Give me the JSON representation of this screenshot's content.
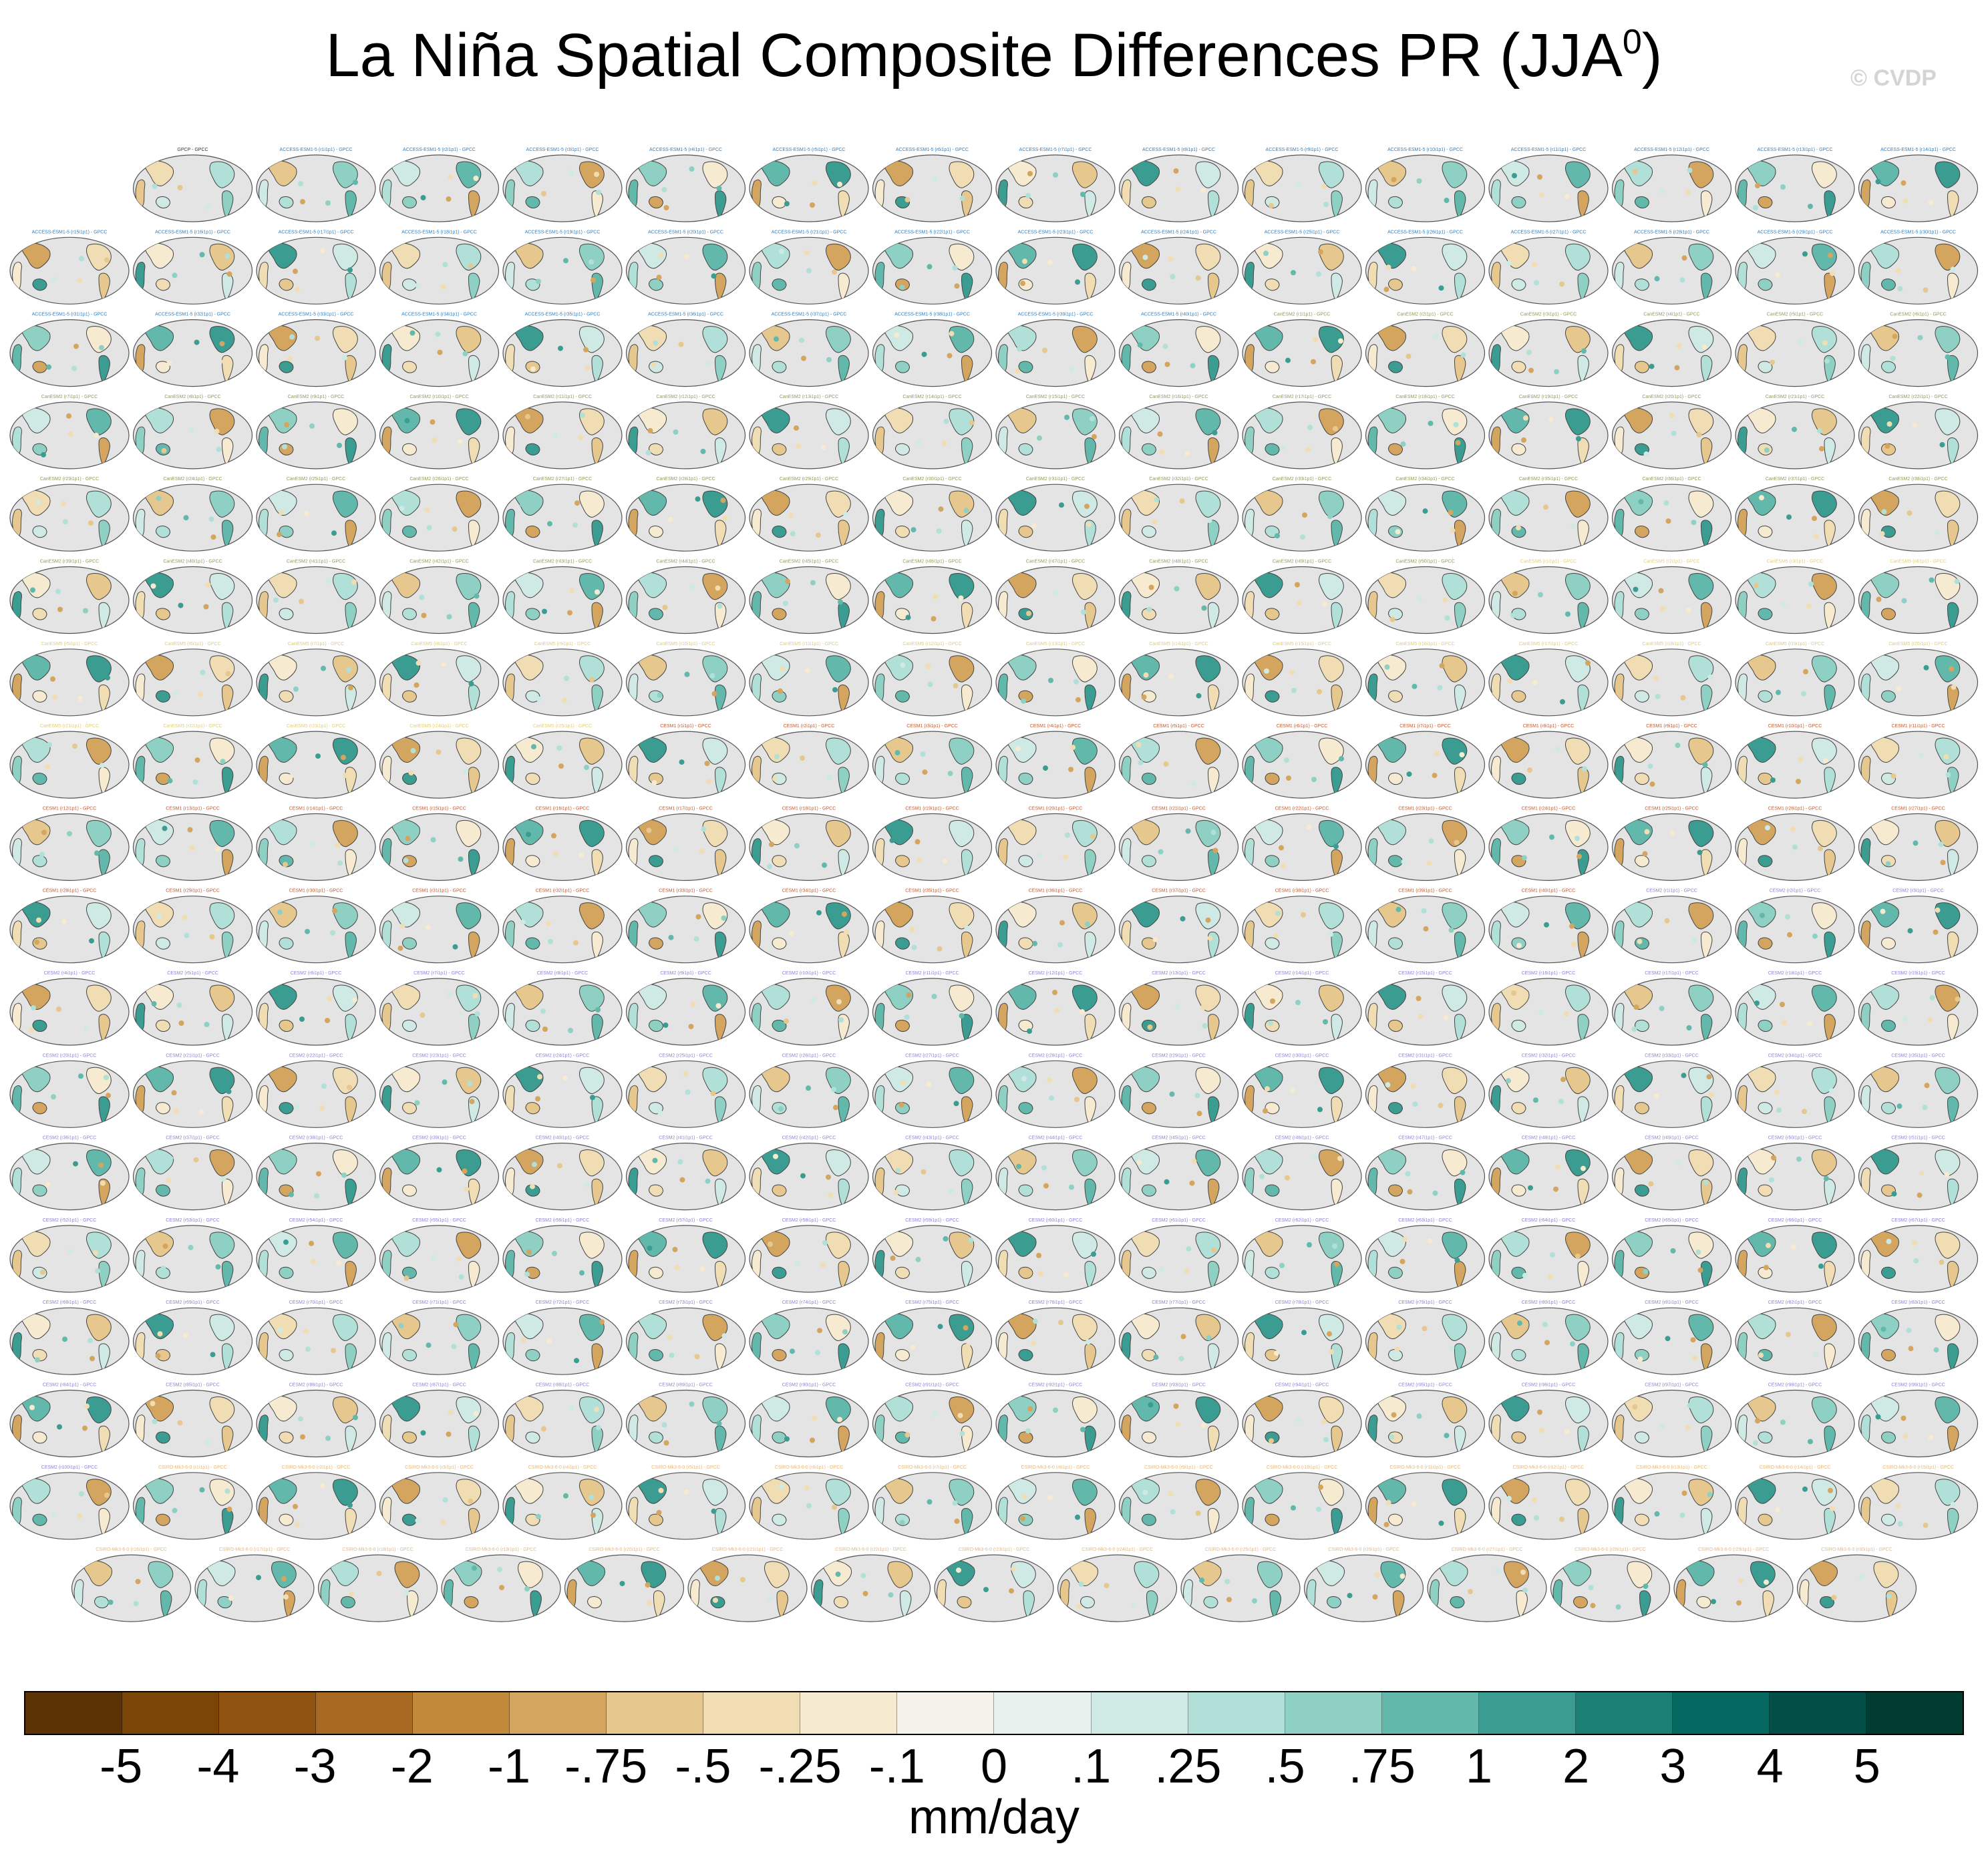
{
  "chart_data": {
    "type": "map-grid",
    "title": "La Niña Spatial Composite Differences PR (JJA",
    "title_superscript": "0",
    "title_suffix": ")",
    "watermark": "© CVDP",
    "units": "mm/day",
    "colorbar": {
      "colors": [
        "#5c3305",
        "#7a4507",
        "#8f5210",
        "#a86a22",
        "#c18a3a",
        "#d4a55e",
        "#e6c88e",
        "#f1ddb4",
        "#f6ead0",
        "#f5f1eb",
        "#e8f0ee",
        "#cfe9e5",
        "#b1e0d9",
        "#8fd0c4",
        "#62b8aa",
        "#3b9d91",
        "#1c7f75",
        "#056861",
        "#014f47",
        "#003c30"
      ],
      "labels": [
        "-5",
        "-4",
        "-3",
        "-2",
        "-1",
        "-.75",
        "-.5",
        "-.25",
        "-.1",
        "0",
        ".1",
        ".25",
        ".5",
        ".75",
        "1",
        "2",
        "3",
        "4",
        "5"
      ]
    },
    "panels": {
      "first": "GPCP - GPCC",
      "groups": [
        {
          "prefix": "ACCESS-ESM1-5",
          "count": 40,
          "color": "#2f7fc1"
        },
        {
          "prefix": "CanESM2",
          "count": 50,
          "color": "#8b9c5c"
        },
        {
          "prefix": "CanESM5",
          "count": 25,
          "color": "#e0cd7a"
        },
        {
          "prefix": "CESM1",
          "count": 40,
          "color": "#c4582e"
        },
        {
          "prefix": "CESM2",
          "count": 100,
          "color": "#8d7fd0"
        },
        {
          "prefix": "CSIRO-Mk3-6-0",
          "count": 30,
          "color": "#e6b87a"
        }
      ],
      "suffix": " - GPCC"
    }
  }
}
